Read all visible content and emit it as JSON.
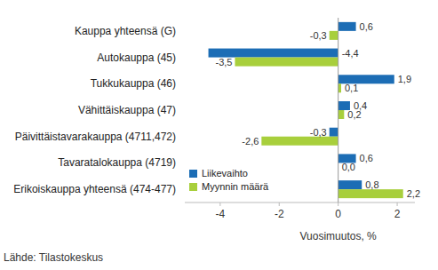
{
  "chart_data": {
    "type": "bar",
    "orientation": "horizontal",
    "categories": [
      "Kauppa yhteensä (G)",
      "Autokauppa (45)",
      "Tukkukauppa (46)",
      "Vähittäiskauppa (47)",
      "Päivittäistavarakauppa (4711,472)",
      "Tavaratalokauppa (4719)",
      "Erikoiskauppa yhteensä (474-477)"
    ],
    "series": [
      {
        "name": "Liikevaihto",
        "color": "#1c6db5",
        "values": [
          0.6,
          -4.4,
          1.9,
          0.4,
          -0.3,
          0.6,
          0.8
        ],
        "value_labels": [
          "0,6",
          "-4,4",
          "1,9",
          "0,4",
          "-0,3",
          "0,6",
          "0,8"
        ]
      },
      {
        "name": "Myynnin määrä",
        "color": "#a8cf3c",
        "values": [
          -0.3,
          -3.5,
          0.1,
          0.2,
          -2.6,
          0.0,
          2.2
        ],
        "value_labels": [
          "-0,3",
          "-3,5",
          "0,1",
          "0,2",
          "-2,6",
          "0,0",
          "2,2"
        ]
      }
    ],
    "x_label": "Vuosimuutos, %",
    "source": "Lähde: Tilastokeskus",
    "xlim": [
      -5.2,
      2.6
    ],
    "xticks": [
      -4,
      -2,
      0,
      2
    ],
    "grid": false,
    "legend": "lower left",
    "data_labels": true
  }
}
